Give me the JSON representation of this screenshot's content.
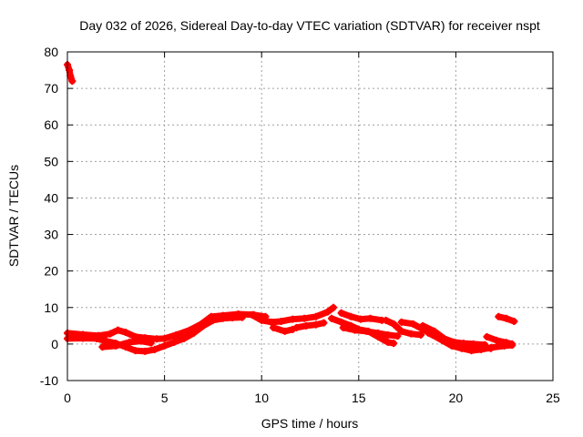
{
  "chart_data": {
    "type": "scatter",
    "title": "Day 032 of 2026, Sidereal Day-to-day VTEC variation (SDTVAR) for receiver nspt",
    "xlabel": "GPS time / hours",
    "ylabel": "SDTVAR / TECUs",
    "xlim": [
      0,
      25
    ],
    "ylim": [
      -10,
      80
    ],
    "xticks": [
      0,
      5,
      10,
      15,
      20,
      25
    ],
    "yticks": [
      -10,
      0,
      10,
      20,
      30,
      40,
      50,
      60,
      70,
      80
    ],
    "grid": true,
    "series": [
      {
        "name": "SDTVAR",
        "color": "#ff0000",
        "marker": "+",
        "tracks": [
          [
            [
              0.0,
              76.5
            ],
            [
              0.1,
              75
            ],
            [
              0.15,
              73.5
            ],
            [
              0.25,
              72
            ]
          ],
          [
            [
              0.0,
              3
            ],
            [
              0.8,
              2.6
            ],
            [
              1.6,
              2.3
            ],
            [
              2.2,
              2.8
            ],
            [
              2.6,
              3.8
            ],
            [
              3.0,
              3.2
            ],
            [
              3.5,
              2
            ],
            [
              4.0,
              1.7
            ],
            [
              4.6,
              1.4
            ],
            [
              5.0,
              1.5
            ],
            [
              5.6,
              2.5
            ],
            [
              6.3,
              3.8
            ],
            [
              6.9,
              5.5
            ],
            [
              7.4,
              7.5
            ],
            [
              8.0,
              7.8
            ],
            [
              8.8,
              8.2
            ],
            [
              9.6,
              8
            ],
            [
              10.2,
              7.5
            ]
          ],
          [
            [
              0.0,
              1.5
            ],
            [
              0.8,
              1.6
            ],
            [
              1.5,
              1.5
            ],
            [
              2.0,
              0.8
            ],
            [
              2.5,
              0.2
            ],
            [
              3.0,
              -0.8
            ],
            [
              3.5,
              -1.8
            ],
            [
              4.0,
              -2
            ],
            [
              4.5,
              -1.5
            ],
            [
              5.0,
              -0.5
            ],
            [
              5.5,
              0.5
            ],
            [
              6.0,
              1.5
            ],
            [
              6.5,
              3
            ],
            [
              7.0,
              5
            ],
            [
              7.5,
              6.5
            ],
            [
              8.0,
              7
            ],
            [
              8.5,
              7.2
            ],
            [
              9.0,
              7.3
            ]
          ],
          [
            [
              1.8,
              -0.8
            ],
            [
              2.5,
              -0.5
            ],
            [
              3.2,
              0.5
            ],
            [
              3.8,
              0.8
            ],
            [
              4.3,
              0.3
            ]
          ],
          [
            [
              9.5,
              8
            ],
            [
              10.0,
              6.5
            ],
            [
              10.5,
              6
            ],
            [
              11.0,
              6.2
            ],
            [
              11.6,
              6.8
            ],
            [
              12.2,
              7
            ],
            [
              12.8,
              7.5
            ],
            [
              13.4,
              8.8
            ],
            [
              13.7,
              10
            ]
          ],
          [
            [
              10.6,
              4.5
            ],
            [
              11.2,
              3.5
            ],
            [
              11.6,
              4
            ]
          ],
          [
            [
              11.8,
              4.5
            ],
            [
              12.3,
              5
            ],
            [
              12.8,
              5.3
            ],
            [
              13.2,
              5.8
            ]
          ],
          [
            [
              13.6,
              7
            ],
            [
              14.1,
              6
            ],
            [
              14.6,
              5
            ],
            [
              15.0,
              4
            ],
            [
              15.5,
              3.5
            ],
            [
              16.0,
              2
            ],
            [
              16.5,
              0.5
            ],
            [
              16.8,
              0.2
            ]
          ],
          [
            [
              14.1,
              8.5
            ],
            [
              14.6,
              7.5
            ],
            [
              15.1,
              6.8
            ],
            [
              15.6,
              7
            ],
            [
              16.2,
              6.5
            ]
          ],
          [
            [
              14.2,
              4.5
            ],
            [
              14.8,
              3.8
            ],
            [
              15.4,
              3.5
            ],
            [
              16.0,
              3
            ],
            [
              16.5,
              2.5
            ],
            [
              17.0,
              2.2
            ]
          ],
          [
            [
              16.4,
              6.5
            ],
            [
              16.8,
              5.5
            ],
            [
              17.2,
              3.5
            ],
            [
              17.7,
              2.8
            ],
            [
              18.2,
              2.5
            ]
          ],
          [
            [
              17.2,
              6
            ],
            [
              17.8,
              5.5
            ],
            [
              18.3,
              4
            ],
            [
              18.8,
              2.5
            ],
            [
              19.3,
              1
            ],
            [
              19.8,
              -0.5
            ],
            [
              20.3,
              -1.2
            ],
            [
              20.8,
              -1.8
            ],
            [
              21.3,
              -1.5
            ],
            [
              21.8,
              -1
            ],
            [
              22.5,
              -0.5
            ],
            [
              22.9,
              -0.3
            ]
          ],
          [
            [
              18.3,
              5
            ],
            [
              18.9,
              3.5
            ],
            [
              19.4,
              1.5
            ],
            [
              19.9,
              0.5
            ],
            [
              20.4,
              0.2
            ],
            [
              20.9,
              0
            ],
            [
              21.5,
              -0.2
            ]
          ],
          [
            [
              18.6,
              3
            ],
            [
              19.2,
              1.5
            ],
            [
              19.8,
              0
            ],
            [
              20.3,
              -0.5
            ],
            [
              20.8,
              -0.8
            ],
            [
              21.3,
              -1
            ],
            [
              21.8,
              -1.2
            ]
          ],
          [
            [
              21.6,
              2
            ],
            [
              22.1,
              1
            ],
            [
              22.6,
              0.4
            ],
            [
              22.9,
              0
            ]
          ],
          [
            [
              22.2,
              7.5
            ],
            [
              22.6,
              7
            ],
            [
              23.0,
              6.2
            ]
          ]
        ]
      }
    ]
  }
}
